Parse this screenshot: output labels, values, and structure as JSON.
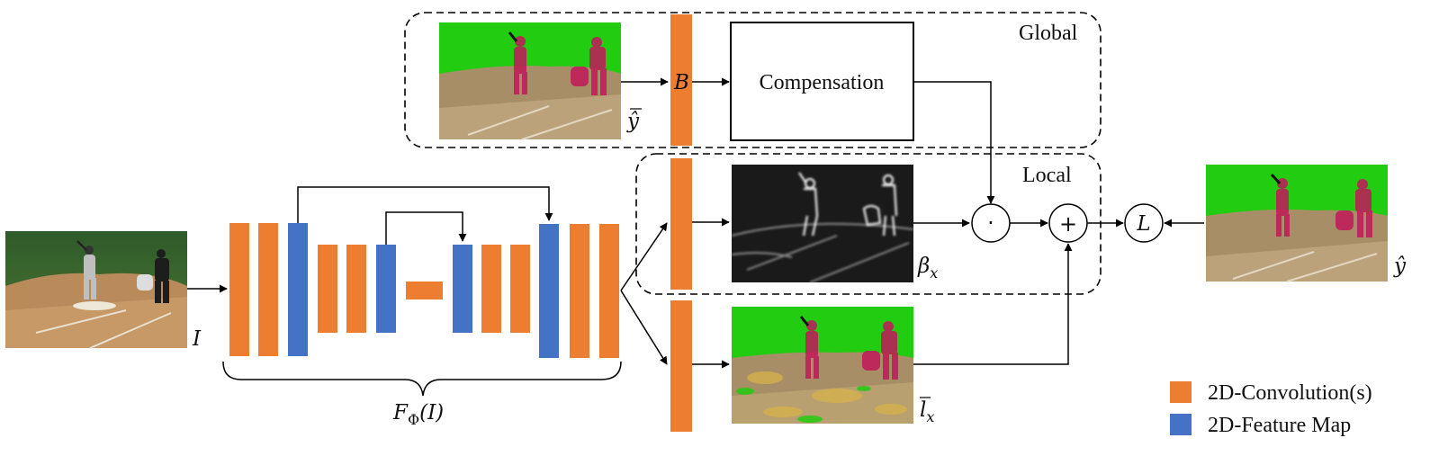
{
  "regions": {
    "global_label": "Global",
    "local_label": "Local"
  },
  "blocks": {
    "compensation_label": "Compensation",
    "bottleneck_label": "B"
  },
  "symbols": {
    "input": "I",
    "y_tilde_vec": "ŷ",
    "beta_x": "β",
    "beta_sub": "x",
    "l_x": "l",
    "l_sub": "x",
    "y_hat": "ŷ",
    "network_fn": "F",
    "network_sub": "Φ",
    "network_arg": "(I)",
    "multiply_op": "·",
    "add_op": "+",
    "loss_op": "L"
  },
  "legend": [
    {
      "label": "2D-Convolution(s)",
      "color": "#ED7D31"
    },
    {
      "label": "2D-Feature Map",
      "color": "#4472C4"
    }
  ],
  "colors": {
    "conv": "#ED7D31",
    "feature": "#4472C4",
    "green_screen": "#22CC11",
    "player_mask": "#C2185B"
  }
}
